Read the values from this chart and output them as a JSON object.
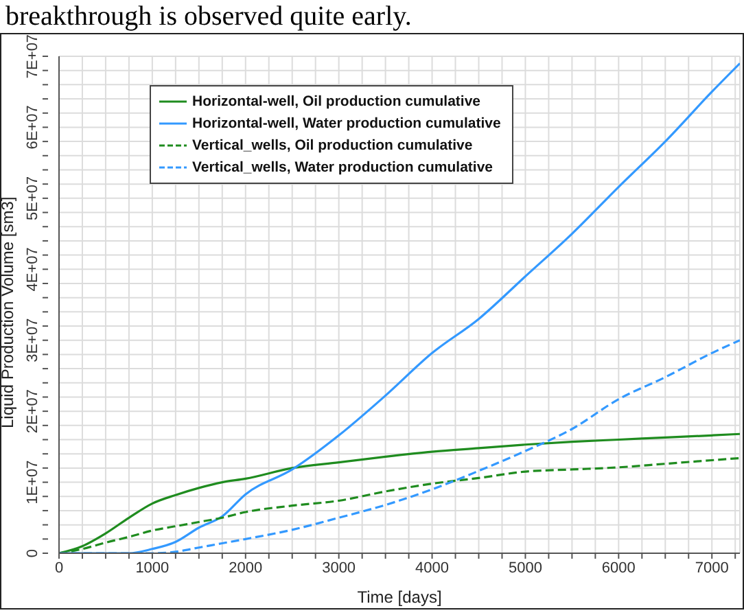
{
  "chart_data": {
    "type": "line",
    "annotations": [
      "breakthrough is observed quite early."
    ],
    "xlabel": "Time [days]",
    "ylabel": "Liquid Production Volume [sm3]",
    "grid": true,
    "legend": "top left",
    "x": [
      0,
      250,
      500,
      750,
      1000,
      1250,
      1500,
      1750,
      2000,
      2500,
      3000,
      3500,
      4000,
      4500,
      5000,
      5500,
      6000,
      6500,
      7000,
      7300
    ],
    "series": [
      {
        "name": "Horizontal-well, Oil production cumulative",
        "color": "#1f8c1f",
        "line_style": "solid",
        "values": [
          0,
          1000000,
          2800000,
          5000000,
          7000000,
          8200000,
          9200000,
          10000000,
          10500000,
          12000000,
          12800000,
          13600000,
          14300000,
          14800000,
          15300000,
          15700000,
          16000000,
          16300000,
          16600000,
          16800000
        ]
      },
      {
        "name": "Horizontal-well, Water production cumulative",
        "color": "#3399ff",
        "line_style": "solid",
        "values": [
          0,
          0,
          0,
          0,
          600000,
          1600000,
          3600000,
          5200000,
          8300000,
          11800000,
          16600000,
          22200000,
          28200000,
          33000000,
          39000000,
          45000000,
          51600000,
          58000000,
          65000000,
          69000000
        ]
      },
      {
        "name": "Vertical_wells, Oil production cumulative",
        "color": "#1f8c1f",
        "line_style": "dashed",
        "values": [
          0,
          600000,
          1500000,
          2300000,
          3200000,
          3800000,
          4400000,
          5000000,
          5800000,
          6700000,
          7400000,
          8700000,
          9800000,
          10600000,
          11500000,
          11800000,
          12100000,
          12600000,
          13100000,
          13400000
        ]
      },
      {
        "name": "Vertical_wells, Water production cumulative",
        "color": "#3399ff",
        "line_style": "dashed",
        "values": [
          0,
          0,
          0,
          0,
          0,
          200000,
          800000,
          1400000,
          2000000,
          3300000,
          5000000,
          6800000,
          9000000,
          11600000,
          14400000,
          17500000,
          21700000,
          24800000,
          28200000,
          30000000
        ]
      }
    ],
    "xlim": [
      0,
      7300
    ],
    "xticks": [
      0,
      {
        "value": 250,
        "label": null
      },
      {
        "value": 500,
        "label": null
      },
      {
        "value": 750,
        "label": null
      },
      1000,
      {
        "value": 1250,
        "label": null
      },
      {
        "value": 1500,
        "label": null
      },
      {
        "value": 1750,
        "label": null
      },
      2000,
      {
        "value": 2250,
        "label": null
      },
      {
        "value": 2500,
        "label": null
      },
      {
        "value": 2750,
        "label": null
      },
      3000,
      {
        "value": 3250,
        "label": null
      },
      {
        "value": 3500,
        "label": null
      },
      {
        "value": 3750,
        "label": null
      },
      4000,
      {
        "value": 4250,
        "label": null
      },
      {
        "value": 4500,
        "label": null
      },
      {
        "value": 4750,
        "label": null
      },
      5000,
      {
        "value": 5250,
        "label": null
      },
      {
        "value": 5500,
        "label": null
      },
      {
        "value": 5750,
        "label": null
      },
      6000,
      {
        "value": 6250,
        "label": null
      },
      {
        "value": 6500,
        "label": null
      },
      {
        "value": 6750,
        "label": null
      },
      7000,
      {
        "value": 7250,
        "label": null
      }
    ],
    "ylim": [
      0,
      70000000
    ],
    "yticks": [
      0,
      {
        "value": 2000000,
        "label": null
      },
      {
        "value": 4000000,
        "label": null
      },
      {
        "value": 6000000,
        "label": null
      },
      {
        "value": 8000000,
        "label": null
      },
      {
        "value": 10000000,
        "label": "1E+07"
      },
      {
        "value": 12000000,
        "label": null
      },
      {
        "value": 14000000,
        "label": null
      },
      {
        "value": 16000000,
        "label": null
      },
      {
        "value": 18000000,
        "label": null
      },
      {
        "value": 20000000,
        "label": "2E+07"
      },
      {
        "value": 22000000,
        "label": null
      },
      {
        "value": 24000000,
        "label": null
      },
      {
        "value": 26000000,
        "label": null
      },
      {
        "value": 28000000,
        "label": null
      },
      {
        "value": 30000000,
        "label": "3E+07"
      },
      {
        "value": 32000000,
        "label": null
      },
      {
        "value": 34000000,
        "label": null
      },
      {
        "value": 36000000,
        "label": null
      },
      {
        "value": 38000000,
        "label": null
      },
      {
        "value": 40000000,
        "label": "4E+07"
      },
      {
        "value": 42000000,
        "label": null
      },
      {
        "value": 44000000,
        "label": null
      },
      {
        "value": 46000000,
        "label": null
      },
      {
        "value": 48000000,
        "label": null
      },
      {
        "value": 50000000,
        "label": "5E+07"
      },
      {
        "value": 52000000,
        "label": null
      },
      {
        "value": 54000000,
        "label": null
      },
      {
        "value": 56000000,
        "label": null
      },
      {
        "value": 58000000,
        "label": null
      },
      {
        "value": 60000000,
        "label": "6E+07"
      },
      {
        "value": 62000000,
        "label": null
      },
      {
        "value": 64000000,
        "label": null
      },
      {
        "value": 66000000,
        "label": null
      },
      {
        "value": 68000000,
        "label": null
      },
      {
        "value": 70000000,
        "label": "7E+07"
      }
    ]
  }
}
